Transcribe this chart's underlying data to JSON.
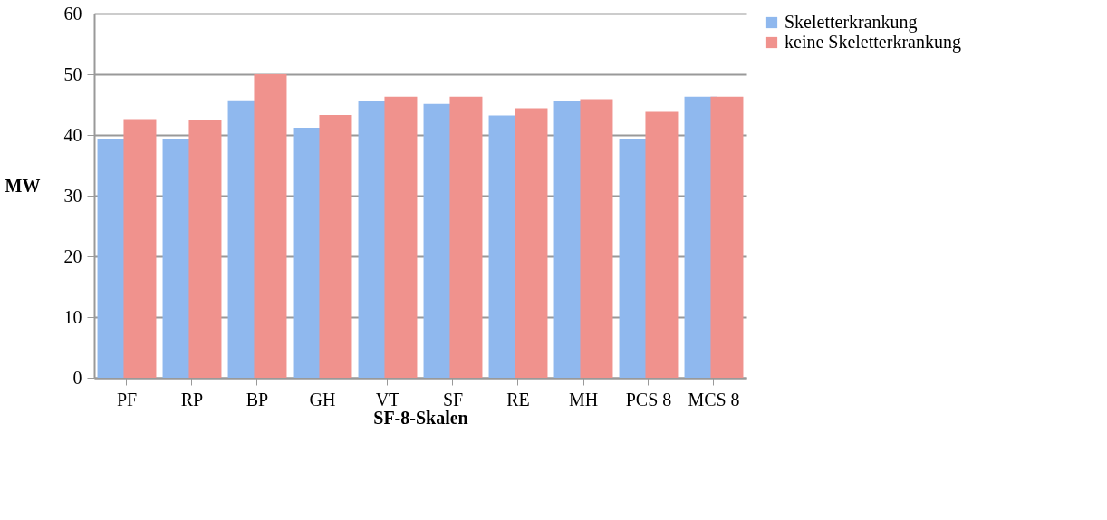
{
  "chart_data": {
    "type": "bar",
    "xlabel": "SF-8-Skalen",
    "ylabel": "MW",
    "categories": [
      "PF",
      "RP",
      "BP",
      "GH",
      "VT",
      "SF",
      "RE",
      "MH",
      "PCS 8",
      "MCS 8"
    ],
    "series": [
      {
        "name": "Skeletterkrankung",
        "color": "#8fb8ee",
        "values": [
          39.4,
          39.4,
          45.7,
          41.2,
          45.6,
          45.1,
          43.2,
          45.6,
          39.4,
          46.3
        ]
      },
      {
        "name": "keine Skeletterkrankung",
        "color": "#f0928d",
        "values": [
          42.6,
          42.4,
          50.0,
          43.3,
          46.3,
          46.3,
          44.4,
          45.9,
          43.8,
          46.3
        ]
      }
    ],
    "ylim": [
      0,
      60
    ],
    "yticks": [
      0,
      10,
      20,
      30,
      40,
      50,
      60
    ],
    "grid": "y",
    "legend": "right"
  }
}
